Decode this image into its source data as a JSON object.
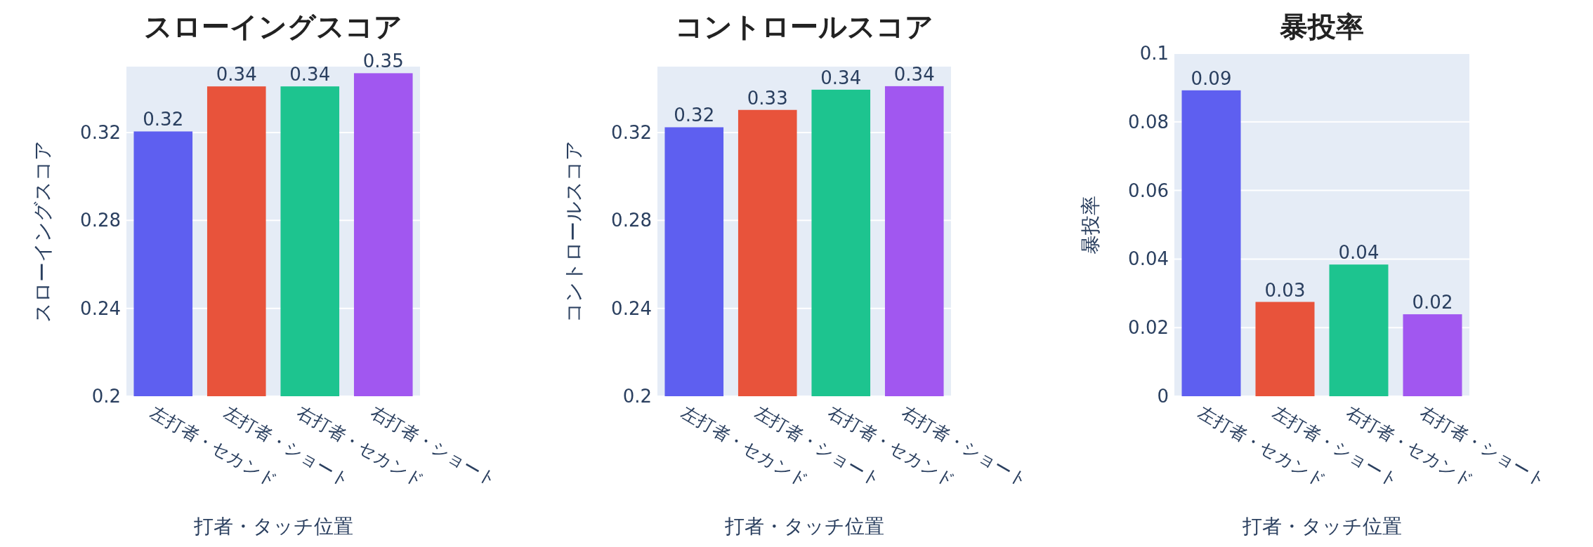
{
  "chart_data": [
    {
      "type": "bar",
      "title": "スローイングスコア",
      "xlabel": "打者・タッチ位置",
      "ylabel": "スローイングスコア",
      "categories": [
        "左打者・セカンド",
        "左打者・ショート",
        "右打者・セカンド",
        "右打者・ショート"
      ],
      "values": [
        0.3205,
        0.341,
        0.341,
        0.347
      ],
      "value_labels": [
        "0.32",
        "0.34",
        "0.34",
        "0.35"
      ],
      "colors": [
        "#5e5ff0",
        "#e8533b",
        "#1dc48f",
        "#a157f0"
      ],
      "ylim": [
        0.2,
        0.35
      ],
      "yticks": [
        0.2,
        0.24,
        0.28,
        0.32
      ],
      "grid": "y"
    },
    {
      "type": "bar",
      "title": "コントロールスコア",
      "xlabel": "打者・タッチ位置",
      "ylabel": "コントロールスコア",
      "categories": [
        "左打者・セカンド",
        "左打者・ショート",
        "右打者・セカンド",
        "右打者・ショート"
      ],
      "values": [
        0.3224,
        0.3303,
        0.3395,
        0.3411
      ],
      "value_labels": [
        "0.32",
        "0.33",
        "0.34",
        "0.34"
      ],
      "colors": [
        "#5e5ff0",
        "#e8533b",
        "#1dc48f",
        "#a157f0"
      ],
      "ylim": [
        0.2,
        0.35
      ],
      "yticks": [
        0.2,
        0.24,
        0.28,
        0.32
      ],
      "grid": "y"
    },
    {
      "type": "bar",
      "title": "暴投率",
      "xlabel": "打者・タッチ位置",
      "ylabel": "暴投率",
      "categories": [
        "左打者・セカンド",
        "左打者・ショート",
        "右打者・セカンド",
        "右打者・ショート"
      ],
      "values": [
        0.0892,
        0.0275,
        0.0384,
        0.0239
      ],
      "value_labels": [
        "0.09",
        "0.03",
        "0.04",
        "0.02"
      ],
      "colors": [
        "#5e5ff0",
        "#e8533b",
        "#1dc48f",
        "#a157f0"
      ],
      "ylim": [
        0,
        0.1
      ],
      "yticks": [
        0,
        0.02,
        0.04,
        0.06,
        0.08,
        0.1
      ],
      "grid": "y"
    }
  ]
}
